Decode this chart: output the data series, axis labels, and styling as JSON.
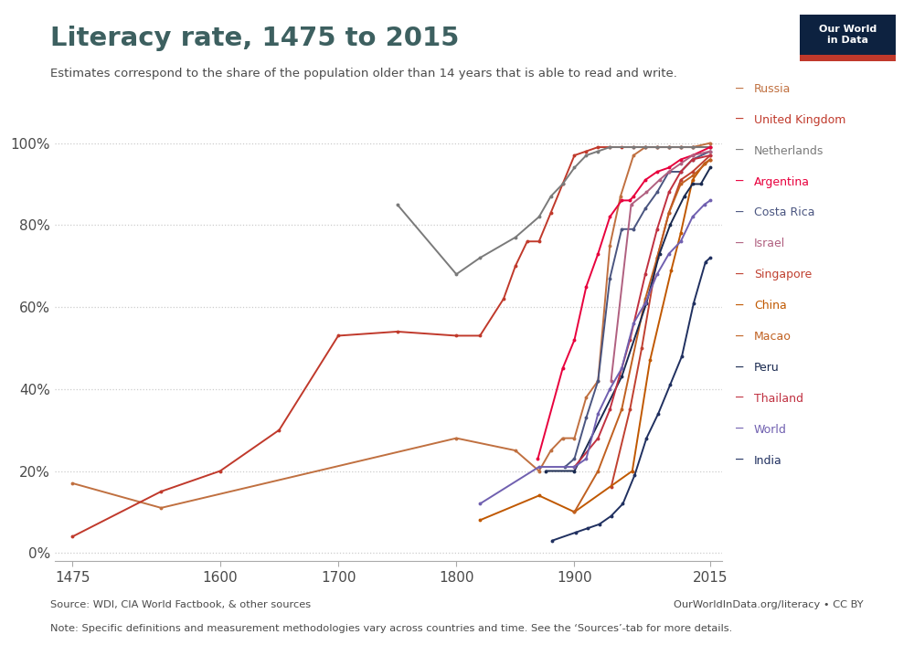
{
  "title": "Literacy rate, 1475 to 2015",
  "subtitle": "Estimates correspond to the share of the population older than 14 years that is able to read and write.",
  "source_left": "Source: WDI, CIA World Factbook, & other sources",
  "source_right": "OurWorldInData.org/literacy • CC BY",
  "note": "Note: Specific definitions and measurement methodologies vary across countries and time. See the ‘Sources’-tab for more details.",
  "logo_text_top": "Our World",
  "logo_text_bottom": "in Data",
  "xlim": [
    1460,
    2025
  ],
  "ylim": [
    -2,
    105
  ],
  "yticks": [
    0,
    20,
    40,
    60,
    80,
    100
  ],
  "xticks": [
    1475,
    1600,
    1700,
    1800,
    1900,
    2015
  ],
  "series": [
    {
      "name": "Russia",
      "color": "#c07040",
      "data": [
        [
          1475,
          17
        ],
        [
          1550,
          11
        ],
        [
          1800,
          28
        ],
        [
          1850,
          25
        ],
        [
          1870,
          20
        ],
        [
          1880,
          25
        ],
        [
          1890,
          28
        ],
        [
          1900,
          28
        ],
        [
          1910,
          38
        ],
        [
          1920,
          42
        ],
        [
          1930,
          75
        ],
        [
          1939,
          87
        ],
        [
          1950,
          97
        ],
        [
          1960,
          99
        ],
        [
          1970,
          99
        ],
        [
          1980,
          99
        ],
        [
          1990,
          99
        ],
        [
          2000,
          99
        ],
        [
          2015,
          100
        ]
      ]
    },
    {
      "name": "United Kingdom",
      "color": "#c0392b",
      "data": [
        [
          1475,
          4
        ],
        [
          1550,
          15
        ],
        [
          1600,
          20
        ],
        [
          1650,
          30
        ],
        [
          1700,
          53
        ],
        [
          1750,
          54
        ],
        [
          1800,
          53
        ],
        [
          1820,
          53
        ],
        [
          1840,
          62
        ],
        [
          1850,
          70
        ],
        [
          1860,
          76
        ],
        [
          1870,
          76
        ],
        [
          1880,
          83
        ],
        [
          1890,
          90
        ],
        [
          1900,
          97
        ],
        [
          1910,
          98
        ],
        [
          1920,
          99
        ],
        [
          1930,
          99
        ],
        [
          1940,
          99
        ],
        [
          1950,
          99
        ],
        [
          1960,
          99
        ],
        [
          1970,
          99
        ],
        [
          1980,
          99
        ],
        [
          1990,
          99
        ],
        [
          2000,
          99
        ],
        [
          2015,
          99
        ]
      ]
    },
    {
      "name": "Netherlands",
      "color": "#7a7a7a",
      "data": [
        [
          1750,
          85
        ],
        [
          1800,
          68
        ],
        [
          1820,
          72
        ],
        [
          1850,
          77
        ],
        [
          1870,
          82
        ],
        [
          1880,
          87
        ],
        [
          1890,
          90
        ],
        [
          1900,
          94
        ],
        [
          1910,
          97
        ],
        [
          1920,
          98
        ],
        [
          1930,
          99
        ],
        [
          1950,
          99
        ],
        [
          1960,
          99
        ],
        [
          1970,
          99
        ],
        [
          1980,
          99
        ],
        [
          1990,
          99
        ],
        [
          2000,
          99
        ],
        [
          2015,
          99
        ]
      ]
    },
    {
      "name": "Argentina",
      "color": "#e8003d",
      "data": [
        [
          1869,
          23
        ],
        [
          1890,
          45
        ],
        [
          1900,
          52
        ],
        [
          1910,
          65
        ],
        [
          1920,
          73
        ],
        [
          1930,
          82
        ],
        [
          1940,
          86
        ],
        [
          1947,
          86
        ],
        [
          1950,
          87
        ],
        [
          1960,
          91
        ],
        [
          1970,
          93
        ],
        [
          1980,
          94
        ],
        [
          1990,
          96
        ],
        [
          2000,
          97
        ],
        [
          2015,
          99
        ]
      ]
    },
    {
      "name": "Costa Rica",
      "color": "#4a5580",
      "data": [
        [
          1892,
          21
        ],
        [
          1900,
          23
        ],
        [
          1910,
          33
        ],
        [
          1920,
          42
        ],
        [
          1930,
          67
        ],
        [
          1940,
          79
        ],
        [
          1950,
          79
        ],
        [
          1960,
          84
        ],
        [
          1970,
          88
        ],
        [
          1980,
          93
        ],
        [
          1990,
          93
        ],
        [
          2000,
          96
        ],
        [
          2015,
          98
        ]
      ]
    },
    {
      "name": "Israel",
      "color": "#b06080",
      "data": [
        [
          1931,
          42
        ],
        [
          1948,
          85
        ],
        [
          1961,
          88
        ],
        [
          1972,
          91
        ],
        [
          1980,
          93
        ],
        [
          1990,
          95
        ],
        [
          2000,
          97
        ],
        [
          2015,
          98
        ]
      ]
    },
    {
      "name": "Singapore",
      "color": "#c04030",
      "data": [
        [
          1931,
          16
        ],
        [
          1947,
          35
        ],
        [
          1957,
          50
        ],
        [
          1970,
          72
        ],
        [
          1980,
          83
        ],
        [
          1990,
          91
        ],
        [
          2000,
          93
        ],
        [
          2015,
          97
        ]
      ]
    },
    {
      "name": "China",
      "color": "#c05800",
      "data": [
        [
          1820,
          8
        ],
        [
          1870,
          14
        ],
        [
          1900,
          10
        ],
        [
          1949,
          20
        ],
        [
          1964,
          47
        ],
        [
          1982,
          69
        ],
        [
          1990,
          78
        ],
        [
          2000,
          91
        ],
        [
          2010,
          95
        ],
        [
          2015,
          96
        ]
      ]
    },
    {
      "name": "Macao",
      "color": "#c06020",
      "data": [
        [
          1900,
          10
        ],
        [
          1920,
          20
        ],
        [
          1940,
          35
        ],
        [
          1960,
          62
        ],
        [
          1970,
          72
        ],
        [
          1980,
          83
        ],
        [
          1990,
          90
        ],
        [
          2000,
          92
        ],
        [
          2015,
          96
        ]
      ]
    },
    {
      "name": "Peru",
      "color": "#1a2a50",
      "data": [
        [
          1876,
          20
        ],
        [
          1900,
          20
        ],
        [
          1940,
          43
        ],
        [
          1961,
          61
        ],
        [
          1972,
          73
        ],
        [
          1981,
          80
        ],
        [
          1993,
          87
        ],
        [
          2000,
          90
        ],
        [
          2007,
          90
        ],
        [
          2015,
          94
        ]
      ]
    },
    {
      "name": "Thailand",
      "color": "#c03040",
      "data": [
        [
          1900,
          21
        ],
        [
          1920,
          28
        ],
        [
          1930,
          35
        ],
        [
          1947,
          52
        ],
        [
          1960,
          68
        ],
        [
          1970,
          79
        ],
        [
          1980,
          88
        ],
        [
          1990,
          93
        ],
        [
          2000,
          96
        ],
        [
          2015,
          97
        ]
      ]
    },
    {
      "name": "World",
      "color": "#7060b0",
      "data": [
        [
          1820,
          12
        ],
        [
          1870,
          21
        ],
        [
          1900,
          21
        ],
        [
          1910,
          23
        ],
        [
          1920,
          34
        ],
        [
          1930,
          40
        ],
        [
          1940,
          45
        ],
        [
          1950,
          56
        ],
        [
          1960,
          61
        ],
        [
          1970,
          68
        ],
        [
          1980,
          73
        ],
        [
          1990,
          76
        ],
        [
          2000,
          82
        ],
        [
          2010,
          85
        ],
        [
          2015,
          86
        ]
      ]
    },
    {
      "name": "India",
      "color": "#203060",
      "data": [
        [
          1881,
          3
        ],
        [
          1901,
          5
        ],
        [
          1911,
          6
        ],
        [
          1921,
          7
        ],
        [
          1931,
          9
        ],
        [
          1941,
          12
        ],
        [
          1951,
          19
        ],
        [
          1961,
          28
        ],
        [
          1971,
          34
        ],
        [
          1981,
          41
        ],
        [
          1991,
          48
        ],
        [
          2001,
          61
        ],
        [
          2011,
          71
        ],
        [
          2015,
          72
        ]
      ]
    }
  ],
  "legend_entries": [
    {
      "name": "Russia",
      "color": "#c07040"
    },
    {
      "name": "United Kingdom",
      "color": "#c0392b"
    },
    {
      "name": "Netherlands",
      "color": "#7a7a7a"
    },
    {
      "name": "Argentina",
      "color": "#e8003d"
    },
    {
      "name": "Costa Rica",
      "color": "#4a5580"
    },
    {
      "name": "Israel",
      "color": "#b06080"
    },
    {
      "name": "Singapore",
      "color": "#c04030"
    },
    {
      "name": "China",
      "color": "#c05800"
    },
    {
      "name": "Macao",
      "color": "#c06020"
    },
    {
      "name": "Peru",
      "color": "#1a2a50"
    },
    {
      "name": "Thailand",
      "color": "#c03040"
    },
    {
      "name": "World",
      "color": "#7060b0"
    },
    {
      "name": "India",
      "color": "#203060"
    }
  ],
  "background_color": "#ffffff",
  "grid_color": "#cccccc",
  "text_color": "#4a4a4a",
  "title_color": "#3d6060",
  "logo_bg": "#0d2240",
  "logo_stripe": "#c0392b"
}
